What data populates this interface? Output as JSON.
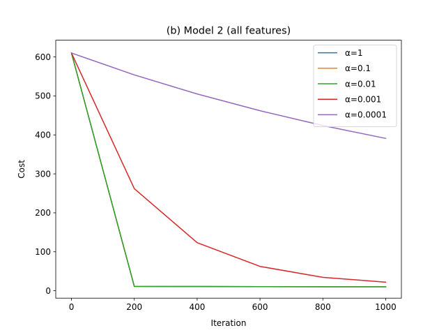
{
  "chart_data": {
    "type": "line",
    "title": "(b) Model 2 (all features)",
    "xlabel": "Iteration",
    "ylabel": "Cost",
    "x": [
      0,
      200,
      400,
      600,
      800,
      1000
    ],
    "xlim": [
      -50,
      1050
    ],
    "ylim": [
      -19,
      643
    ],
    "xticks": [
      0,
      200,
      400,
      600,
      800,
      1000
    ],
    "yticks": [
      0,
      100,
      200,
      300,
      400,
      500,
      600
    ],
    "grid": false,
    "legend_position": "top-right",
    "series": [
      {
        "name": "α=1",
        "color": "#1f77b4",
        "values": [
          610.1,
          11.2,
          10.8,
          10.5,
          10.3,
          10.2
        ]
      },
      {
        "name": "α=0.1",
        "color": "#ff7f0e",
        "values": [
          610.1,
          11.2,
          10.8,
          10.5,
          10.3,
          10.2
        ]
      },
      {
        "name": "α=0.01",
        "color": "#2ca02c",
        "values": [
          610.1,
          11.2,
          10.8,
          10.5,
          10.3,
          10.2
        ]
      },
      {
        "name": "α=0.001",
        "color": "#d62728",
        "values": [
          610.1,
          262.0,
          123.5,
          62.5,
          34.5,
          22.0
        ]
      },
      {
        "name": "α=0.0001",
        "color": "#9467bd",
        "values": [
          610.1,
          554.0,
          505.0,
          462.0,
          424.0,
          391.0
        ]
      }
    ]
  }
}
